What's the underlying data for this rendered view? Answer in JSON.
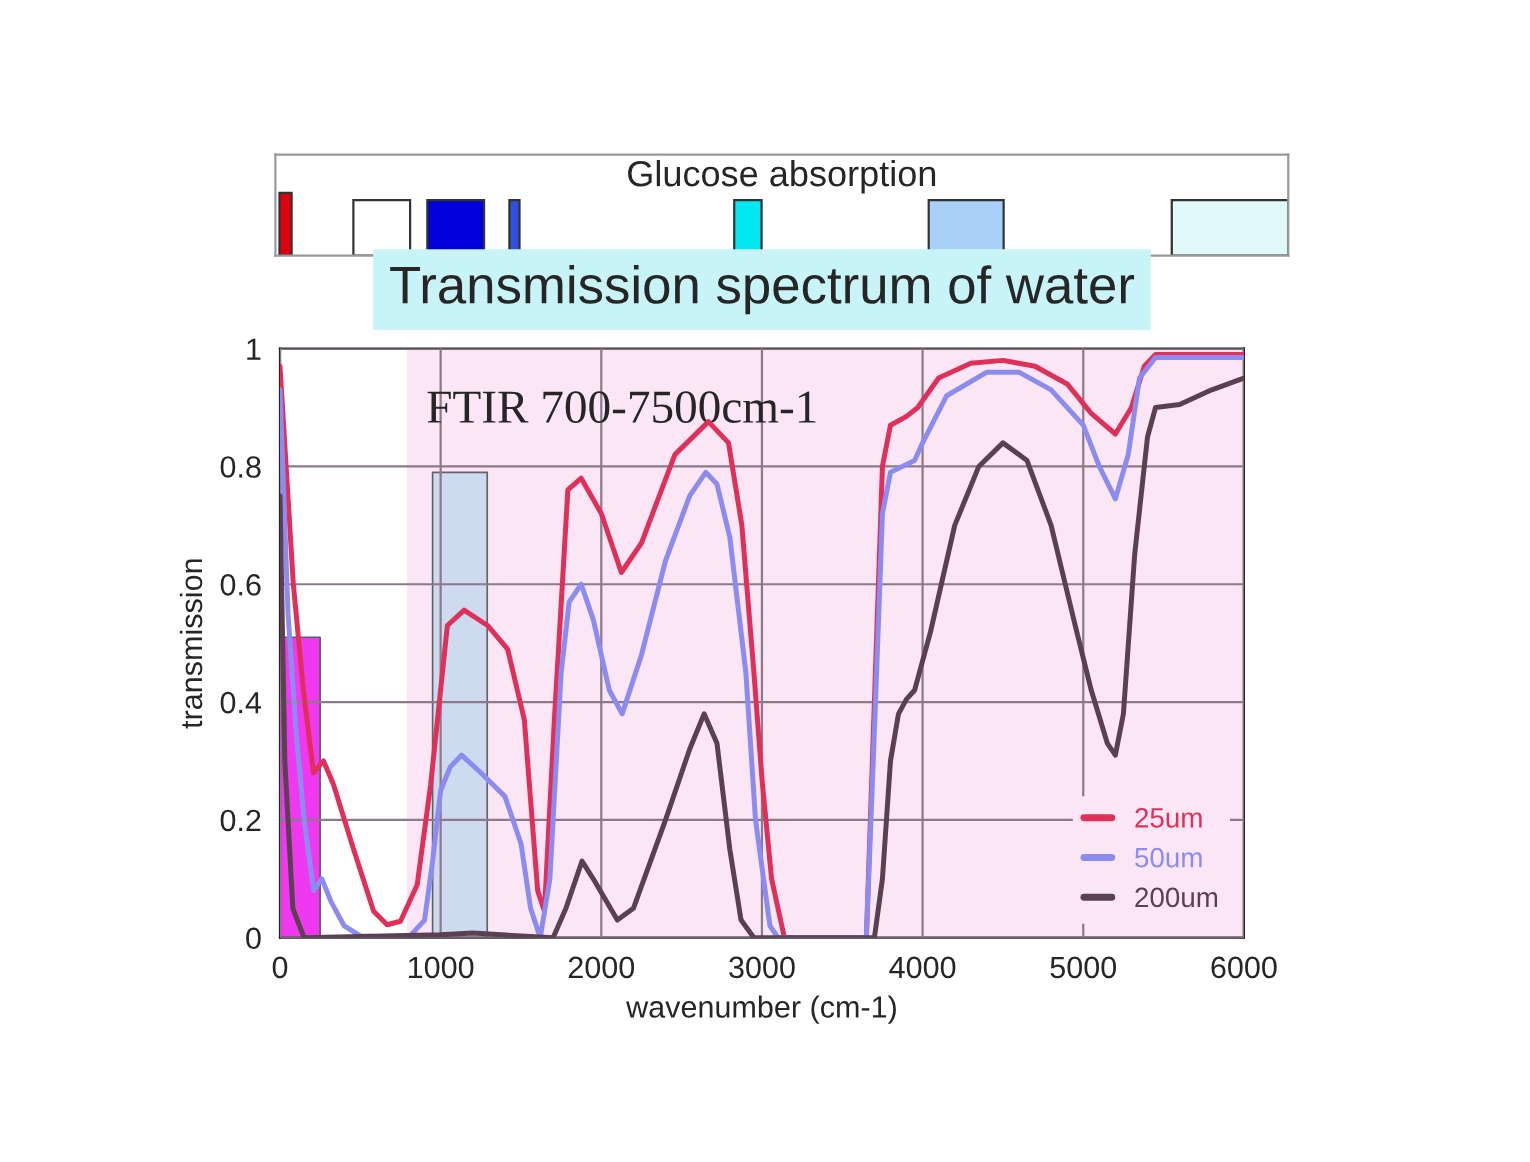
{
  "chart_data": [
    {
      "type": "other",
      "title": "Glucose absorption"
    },
    {
      "type": "line",
      "title": "Transmission spectrum of water",
      "xlabel": "wavenumber (cm-1)",
      "ylabel": "transmission",
      "xlim": [
        0,
        6000
      ],
      "ylim": [
        0,
        1
      ],
      "xticks": [
        0,
        1000,
        2000,
        3000,
        4000,
        5000,
        6000
      ],
      "yticks": [
        0,
        0.2,
        0.4,
        0.6,
        0.8,
        1
      ],
      "grid": true,
      "legend": "bottom right",
      "bands": [
        {
          "axis": "x",
          "from": 790,
          "to": 6000,
          "label": "FTIR 700-7500cm-1",
          "color": "#fbe6f5"
        }
      ],
      "series": [
        {
          "type": "area",
          "color": "#ee22ee",
          "x": [
            0,
            0,
            250,
            250
          ],
          "values": [
            0,
            0.51,
            0.51,
            0
          ]
        },
        {
          "type": "area",
          "color": "#c8d8f0",
          "x": [
            950,
            950,
            1290,
            1290
          ],
          "values": [
            0,
            0.79,
            0.79,
            0
          ]
        },
        {
          "name": "25um",
          "color": "#e0305a",
          "x": [
            0,
            83,
            146,
            208,
            271,
            333,
            458,
            583,
            667,
            750,
            854,
            938,
            1042,
            1146,
            1292,
            1417,
            1521,
            1604,
            1646,
            1708,
            1792,
            1875,
            2000,
            2125,
            2250,
            2458,
            2667,
            2792,
            2875,
            2950,
            3000,
            3060,
            3140,
            3650,
            3700,
            3750,
            3800,
            3900,
            3970,
            4100,
            4300,
            4500,
            4700,
            4900,
            5050,
            5200,
            5300,
            5380,
            5450,
            6000
          ],
          "values": [
            0.97,
            0.6,
            0.42,
            0.28,
            0.3,
            0.26,
            0.15,
            0.045,
            0.022,
            0.028,
            0.09,
            0.26,
            0.53,
            0.556,
            0.53,
            0.49,
            0.37,
            0.08,
            0.045,
            0.37,
            0.76,
            0.78,
            0.72,
            0.62,
            0.67,
            0.82,
            0.876,
            0.84,
            0.7,
            0.45,
            0.27,
            0.1,
            0,
            0,
            0.4,
            0.8,
            0.87,
            0.885,
            0.9,
            0.95,
            0.975,
            0.98,
            0.97,
            0.94,
            0.89,
            0.855,
            0.9,
            0.97,
            0.99,
            0.99
          ]
        },
        {
          "name": "50um",
          "color": "#8c8cf0",
          "x": [
            0,
            50,
            100,
            150,
            210,
            260,
            320,
            400,
            500,
            800,
            900,
            950,
            1000,
            1060,
            1130,
            1250,
            1400,
            1500,
            1560,
            1620,
            1680,
            1750,
            1800,
            1875,
            1950,
            2050,
            2130,
            2250,
            2400,
            2550,
            2650,
            2720,
            2800,
            2900,
            2960,
            3050,
            3100,
            3650,
            3700,
            3750,
            3800,
            3950,
            4000,
            4150,
            4400,
            4600,
            4800,
            5000,
            5100,
            5200,
            5280,
            5350,
            5450,
            6000
          ],
          "values": [
            0.93,
            0.55,
            0.35,
            0.2,
            0.08,
            0.1,
            0.06,
            0.02,
            0.003,
            0,
            0.03,
            0.13,
            0.25,
            0.29,
            0.31,
            0.28,
            0.24,
            0.16,
            0.05,
            0,
            0.1,
            0.45,
            0.57,
            0.6,
            0.54,
            0.42,
            0.38,
            0.48,
            0.64,
            0.75,
            0.79,
            0.77,
            0.68,
            0.45,
            0.2,
            0.02,
            0,
            0,
            0.35,
            0.72,
            0.79,
            0.81,
            0.84,
            0.92,
            0.96,
            0.96,
            0.93,
            0.87,
            0.8,
            0.745,
            0.82,
            0.95,
            0.985,
            0.985
          ]
        },
        {
          "name": "200um",
          "color": "#5a4050",
          "x": [
            0,
            30,
            80,
            150,
            1000,
            1200,
            1500,
            1700,
            1780,
            1880,
            1950,
            2100,
            2200,
            2400,
            2550,
            2640,
            2720,
            2800,
            2870,
            2950,
            3700,
            3750,
            3800,
            3850,
            3900,
            3950,
            4050,
            4200,
            4350,
            4500,
            4650,
            4800,
            4950,
            5050,
            5150,
            5200,
            5250,
            5320,
            5400,
            5450,
            5600,
            5800,
            6000
          ],
          "values": [
            0.75,
            0.3,
            0.05,
            0,
            0.005,
            0.008,
            0.003,
            0,
            0.05,
            0.13,
            0.1,
            0.03,
            0.05,
            0.2,
            0.32,
            0.38,
            0.33,
            0.15,
            0.03,
            0,
            0,
            0.1,
            0.3,
            0.38,
            0.405,
            0.42,
            0.52,
            0.7,
            0.8,
            0.84,
            0.81,
            0.7,
            0.53,
            0.42,
            0.33,
            0.31,
            0.38,
            0.65,
            0.85,
            0.9,
            0.905,
            0.93,
            0.95
          ]
        }
      ]
    }
  ]
}
